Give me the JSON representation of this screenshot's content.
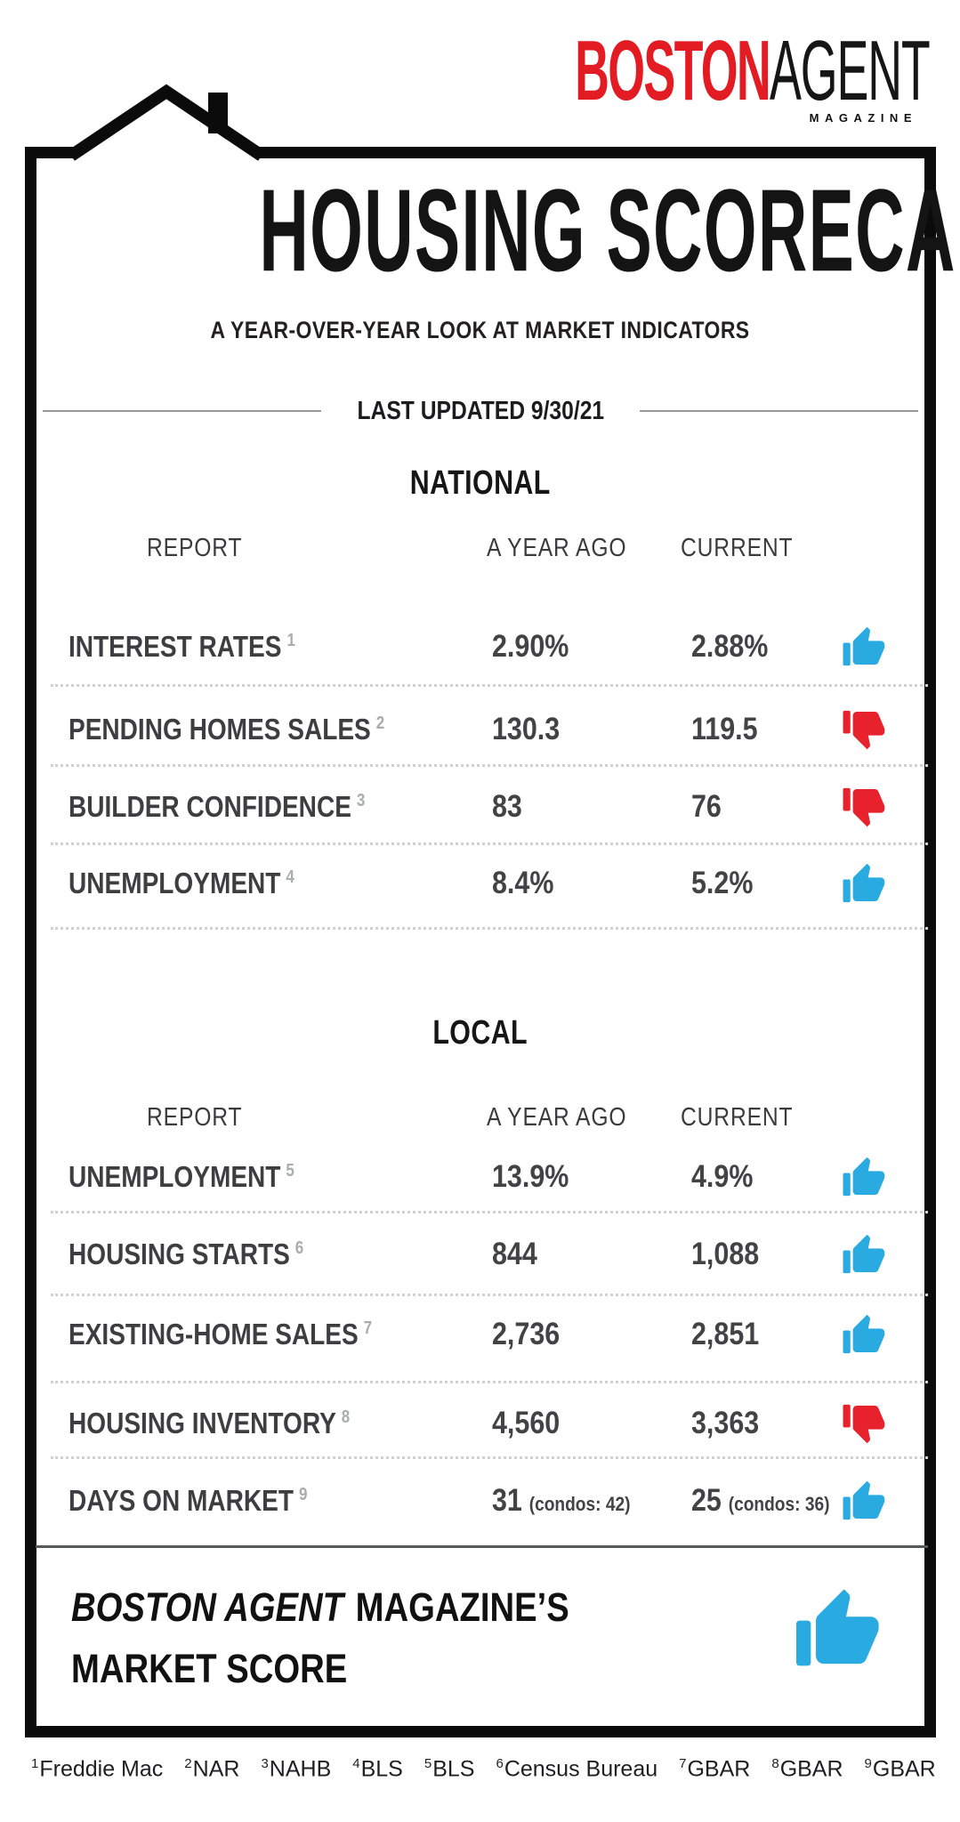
{
  "colors": {
    "up": "#29abe2",
    "down": "#e8222c",
    "brand_red": "#e31b23"
  },
  "logo": {
    "boston": "BOSTON",
    "agent": "AGENT",
    "magazine": "MAGAZINE"
  },
  "masthead": {
    "title": "HOUSING SCORECARD",
    "subtitle": "A YEAR-OVER-YEAR LOOK AT MARKET INDICATORS",
    "last_updated": "LAST UPDATED 9/30/21"
  },
  "table": {
    "columns": {
      "report": "REPORT",
      "year_ago": "A YEAR AGO",
      "current": "CURRENT"
    },
    "sections": [
      {
        "name": "NATIONAL",
        "rows": [
          {
            "label": "INTEREST RATES",
            "footnote": "1",
            "year_ago": "2.90%",
            "current": "2.88%",
            "trend": "up"
          },
          {
            "label": "PENDING HOMES SALES",
            "footnote": "2",
            "year_ago": "130.3",
            "current": "119.5",
            "trend": "down"
          },
          {
            "label": "BUILDER CONFIDENCE",
            "footnote": "3",
            "year_ago": "83",
            "current": "76",
            "trend": "down"
          },
          {
            "label": "UNEMPLOYMENT",
            "footnote": "4",
            "year_ago": "8.4%",
            "current": "5.2%",
            "trend": "up"
          }
        ]
      },
      {
        "name": "LOCAL",
        "rows": [
          {
            "label": "UNEMPLOYMENT",
            "footnote": "5",
            "year_ago": "13.9%",
            "current": "4.9%",
            "trend": "up"
          },
          {
            "label": "HOUSING STARTS",
            "footnote": "6",
            "year_ago": "844",
            "current": "1,088",
            "trend": "up"
          },
          {
            "label": "EXISTING-HOME SALES",
            "footnote": "7",
            "year_ago": "2,736",
            "current": "2,851",
            "trend": "up"
          },
          {
            "label": "HOUSING INVENTORY",
            "footnote": "8",
            "year_ago": "4,560",
            "current": "3,363",
            "trend": "down"
          },
          {
            "label": "DAYS ON MARKET",
            "footnote": "9",
            "year_ago": "31",
            "year_ago_note": "(condos: 42)",
            "current": "25",
            "current_note": "(condos: 36)",
            "trend": "up"
          }
        ]
      }
    ]
  },
  "market_score": {
    "brand": "BOSTON AGENT",
    "suffix": "MAGAZINE’S",
    "line2": "MARKET SCORE",
    "trend": "up"
  },
  "footnotes": [
    {
      "num": "1",
      "source": "Freddie Mac"
    },
    {
      "num": "2",
      "source": "NAR"
    },
    {
      "num": "3",
      "source": "NAHB"
    },
    {
      "num": "4",
      "source": "BLS"
    },
    {
      "num": "5",
      "source": "BLS"
    },
    {
      "num": "6",
      "source": "Census Bureau"
    },
    {
      "num": "7",
      "source": "GBAR"
    },
    {
      "num": "8",
      "source": "GBAR"
    },
    {
      "num": "9",
      "source": "GBAR"
    }
  ]
}
